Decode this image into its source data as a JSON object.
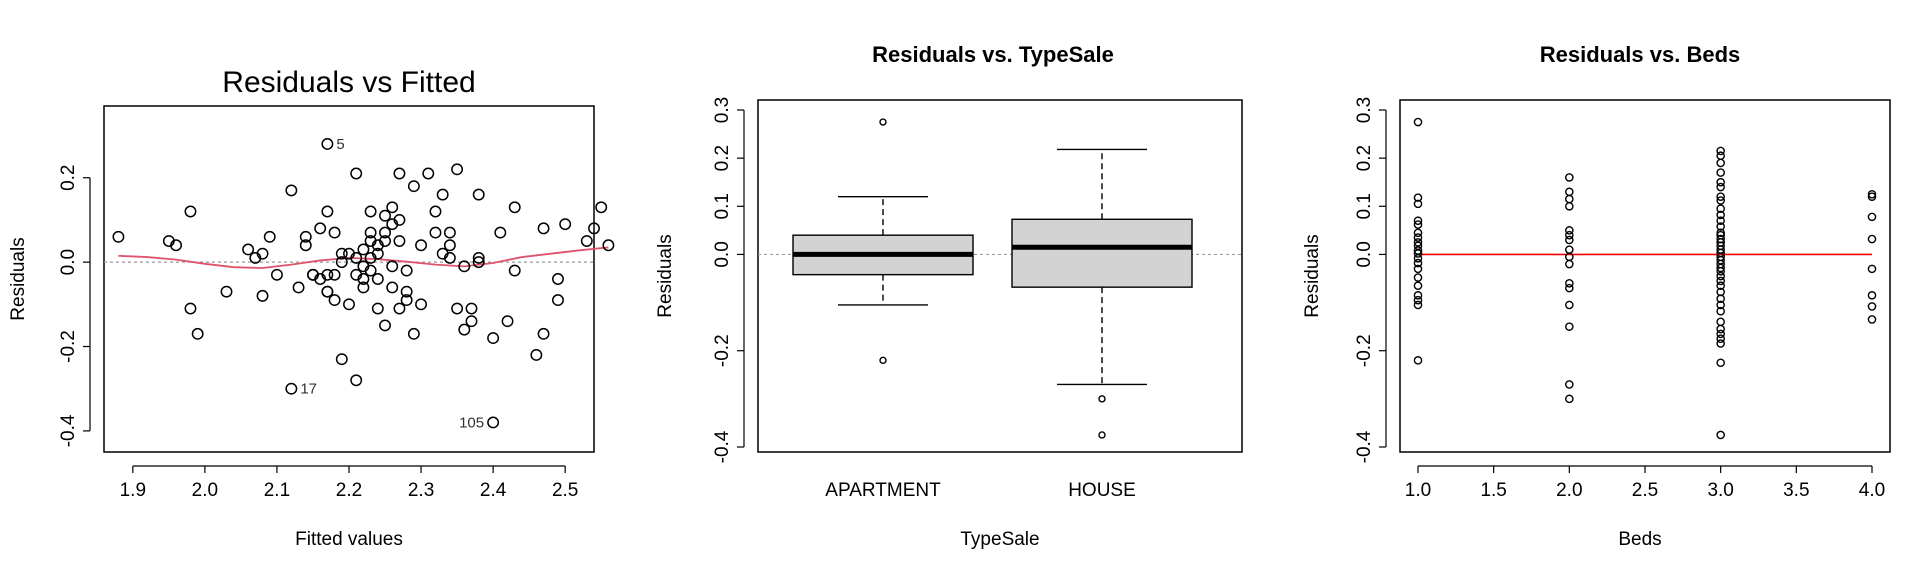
{
  "chart_data": [
    {
      "type": "scatter",
      "title": "Residuals vs Fitted",
      "xlabel": "Fitted values",
      "ylabel": "Residuals",
      "xlim": [
        1.86,
        2.54
      ],
      "ylim": [
        -0.45,
        0.37
      ],
      "xticks": [
        "1.9",
        "2.0",
        "2.1",
        "2.2",
        "2.3",
        "2.4",
        "2.5"
      ],
      "yticks": [
        "-0.4",
        "-0.2",
        "0.0",
        "0.2"
      ],
      "reference_line": 0,
      "colors": {
        "points": "#000000",
        "smooth": "#df536b",
        "reference": "#999999"
      },
      "points": [
        [
          1.88,
          0.06
        ],
        [
          1.95,
          0.05
        ],
        [
          1.96,
          0.04
        ],
        [
          1.98,
          0.12
        ],
        [
          1.98,
          -0.11
        ],
        [
          1.99,
          -0.17
        ],
        [
          2.03,
          -0.07
        ],
        [
          2.06,
          0.03
        ],
        [
          2.07,
          0.01
        ],
        [
          2.08,
          -0.08
        ],
        [
          2.08,
          0.02
        ],
        [
          2.09,
          0.06
        ],
        [
          2.1,
          -0.03
        ],
        [
          2.12,
          0.17
        ],
        [
          2.12,
          -0.3
        ],
        [
          2.13,
          -0.06
        ],
        [
          2.14,
          0.04
        ],
        [
          2.14,
          0.06
        ],
        [
          2.15,
          -0.03
        ],
        [
          2.15,
          -0.03
        ],
        [
          2.16,
          0.08
        ],
        [
          2.16,
          -0.04
        ],
        [
          2.17,
          -0.03
        ],
        [
          2.17,
          -0.07
        ],
        [
          2.17,
          -0.07
        ],
        [
          2.17,
          0.12
        ],
        [
          2.17,
          0.28
        ],
        [
          2.18,
          -0.09
        ],
        [
          2.18,
          0.07
        ],
        [
          2.18,
          -0.03
        ],
        [
          2.19,
          -0.23
        ],
        [
          2.19,
          0.0
        ],
        [
          2.19,
          0.02
        ],
        [
          2.2,
          0.02
        ],
        [
          2.2,
          -0.1
        ],
        [
          2.21,
          -0.28
        ],
        [
          2.21,
          0.21
        ],
        [
          2.21,
          0.01
        ],
        [
          2.21,
          -0.03
        ],
        [
          2.22,
          -0.06
        ],
        [
          2.22,
          0.03
        ],
        [
          2.22,
          -0.01
        ],
        [
          2.22,
          -0.04
        ],
        [
          2.23,
          0.05
        ],
        [
          2.23,
          0.12
        ],
        [
          2.23,
          0.07
        ],
        [
          2.23,
          -0.02
        ],
        [
          2.23,
          0.01
        ],
        [
          2.24,
          0.04
        ],
        [
          2.24,
          -0.04
        ],
        [
          2.24,
          -0.11
        ],
        [
          2.24,
          0.02
        ],
        [
          2.25,
          0.05
        ],
        [
          2.25,
          0.07
        ],
        [
          2.25,
          0.11
        ],
        [
          2.25,
          -0.15
        ],
        [
          2.26,
          -0.01
        ],
        [
          2.26,
          0.13
        ],
        [
          2.26,
          0.09
        ],
        [
          2.26,
          -0.06
        ],
        [
          2.27,
          0.1
        ],
        [
          2.27,
          -0.11
        ],
        [
          2.27,
          0.05
        ],
        [
          2.27,
          0.21
        ],
        [
          2.28,
          -0.09
        ],
        [
          2.28,
          -0.02
        ],
        [
          2.28,
          -0.07
        ],
        [
          2.29,
          0.18
        ],
        [
          2.29,
          -0.17
        ],
        [
          2.3,
          0.04
        ],
        [
          2.3,
          -0.1
        ],
        [
          2.31,
          0.21
        ],
        [
          2.32,
          0.07
        ],
        [
          2.32,
          0.12
        ],
        [
          2.33,
          0.16
        ],
        [
          2.33,
          0.02
        ],
        [
          2.34,
          0.04
        ],
        [
          2.34,
          0.07
        ],
        [
          2.34,
          0.01
        ],
        [
          2.35,
          0.22
        ],
        [
          2.35,
          -0.11
        ],
        [
          2.36,
          -0.16
        ],
        [
          2.36,
          -0.01
        ],
        [
          2.37,
          -0.11
        ],
        [
          2.37,
          -0.14
        ],
        [
          2.38,
          0.16
        ],
        [
          2.38,
          0.0
        ],
        [
          2.38,
          0.01
        ],
        [
          2.4,
          -0.18
        ],
        [
          2.4,
          -0.38
        ],
        [
          2.41,
          0.07
        ],
        [
          2.42,
          -0.14
        ],
        [
          2.43,
          -0.02
        ],
        [
          2.43,
          0.13
        ],
        [
          2.46,
          -0.22
        ],
        [
          2.47,
          -0.17
        ],
        [
          2.47,
          0.08
        ],
        [
          2.49,
          -0.09
        ],
        [
          2.49,
          -0.04
        ],
        [
          2.5,
          0.09
        ],
        [
          2.53,
          0.05
        ],
        [
          2.54,
          0.08
        ],
        [
          2.55,
          0.13
        ],
        [
          2.56,
          0.04
        ]
      ],
      "smooth": [
        [
          1.88,
          0.015
        ],
        [
          1.92,
          0.012
        ],
        [
          1.96,
          0.006
        ],
        [
          2.0,
          -0.004
        ],
        [
          2.04,
          -0.012
        ],
        [
          2.08,
          -0.014
        ],
        [
          2.12,
          -0.006
        ],
        [
          2.16,
          0.004
        ],
        [
          2.2,
          0.01
        ],
        [
          2.24,
          0.007
        ],
        [
          2.28,
          0.001
        ],
        [
          2.32,
          -0.006
        ],
        [
          2.36,
          -0.01
        ],
        [
          2.4,
          -0.002
        ],
        [
          2.44,
          0.012
        ],
        [
          2.48,
          0.02
        ],
        [
          2.52,
          0.028
        ],
        [
          2.56,
          0.035
        ]
      ],
      "point_labels": [
        {
          "text": "5",
          "x": 2.17,
          "y": 0.28
        },
        {
          "text": "17",
          "x": 2.12,
          "y": -0.3
        },
        {
          "text": "105",
          "x": 2.4,
          "y": -0.38
        }
      ]
    },
    {
      "type": "box",
      "title": "Residuals vs. TypeSale",
      "xlabel": "TypeSale",
      "ylabel": "Residuals",
      "ylim": [
        -0.4,
        0.3
      ],
      "yticks": [
        "-0.4",
        "-0.2",
        "0.0",
        "0.1",
        "0.2",
        "0.3"
      ],
      "reference_line": 0,
      "colors": {
        "box_fill": "#d3d3d3",
        "reference": "#999999"
      },
      "categories": [
        "APARTMENT",
        "HOUSE"
      ],
      "boxes": [
        {
          "whisker_low": -0.105,
          "q1": -0.042,
          "median": 0.0,
          "q3": 0.04,
          "whisker_high": 0.12,
          "outliers": [
            0.275,
            -0.22
          ]
        },
        {
          "whisker_low": -0.27,
          "q1": -0.068,
          "median": 0.015,
          "q3": 0.073,
          "whisker_high": 0.218,
          "outliers": [
            -0.3,
            -0.375
          ]
        }
      ]
    },
    {
      "type": "scatter",
      "title": "Residuals vs. Beds",
      "xlabel": "Beds",
      "ylabel": "Residuals",
      "xlim": [
        0.92,
        4.08
      ],
      "ylim": [
        -0.4,
        0.3
      ],
      "xticks": [
        "1.0",
        "1.5",
        "2.0",
        "2.5",
        "3.0",
        "3.5",
        "4.0"
      ],
      "yticks": [
        "-0.4",
        "-0.2",
        "0.0",
        "0.1",
        "0.2",
        "0.3"
      ],
      "reference_line": 0,
      "colors": {
        "points": "#000000",
        "reference": "#ff0000"
      },
      "points": [
        [
          1,
          0.275
        ],
        [
          1,
          0.118
        ],
        [
          1,
          0.105
        ],
        [
          1,
          0.07
        ],
        [
          1,
          0.062
        ],
        [
          1,
          0.045
        ],
        [
          1,
          0.035
        ],
        [
          1,
          0.025
        ],
        [
          1,
          0.018
        ],
        [
          1,
          0.008
        ],
        [
          1,
          0.002
        ],
        [
          1,
          -0.008
        ],
        [
          1,
          -0.018
        ],
        [
          1,
          -0.03
        ],
        [
          1,
          -0.048
        ],
        [
          1,
          -0.065
        ],
        [
          1,
          -0.085
        ],
        [
          1,
          -0.095
        ],
        [
          1,
          -0.105
        ],
        [
          1,
          -0.22
        ],
        [
          2,
          0.16
        ],
        [
          2,
          0.13
        ],
        [
          2,
          0.115
        ],
        [
          2,
          0.1
        ],
        [
          2,
          0.05
        ],
        [
          2,
          0.04
        ],
        [
          2,
          0.03
        ],
        [
          2,
          0.01
        ],
        [
          2,
          -0.005
        ],
        [
          2,
          -0.02
        ],
        [
          2,
          -0.06
        ],
        [
          2,
          -0.07
        ],
        [
          2,
          -0.105
        ],
        [
          2,
          -0.15
        ],
        [
          2,
          -0.27
        ],
        [
          2,
          -0.3
        ],
        [
          3,
          0.215
        ],
        [
          3,
          0.205
        ],
        [
          3,
          0.19
        ],
        [
          3,
          0.17
        ],
        [
          3,
          0.15
        ],
        [
          3,
          0.14
        ],
        [
          3,
          0.12
        ],
        [
          3,
          0.112
        ],
        [
          3,
          0.095
        ],
        [
          3,
          0.082
        ],
        [
          3,
          0.07
        ],
        [
          3,
          0.058
        ],
        [
          3,
          0.045
        ],
        [
          3,
          0.04
        ],
        [
          3,
          0.032
        ],
        [
          3,
          0.025
        ],
        [
          3,
          0.018
        ],
        [
          3,
          0.01
        ],
        [
          3,
          0.003
        ],
        [
          3,
          -0.005
        ],
        [
          3,
          -0.012
        ],
        [
          3,
          -0.02
        ],
        [
          3,
          -0.028
        ],
        [
          3,
          -0.035
        ],
        [
          3,
          -0.045
        ],
        [
          3,
          -0.055
        ],
        [
          3,
          -0.065
        ],
        [
          3,
          -0.078
        ],
        [
          3,
          -0.092
        ],
        [
          3,
          -0.105
        ],
        [
          3,
          -0.118
        ],
        [
          3,
          -0.14
        ],
        [
          3,
          -0.155
        ],
        [
          3,
          -0.165
        ],
        [
          3,
          -0.175
        ],
        [
          3,
          -0.185
        ],
        [
          3,
          -0.225
        ],
        [
          3,
          -0.375
        ],
        [
          4,
          0.125
        ],
        [
          4,
          0.12
        ],
        [
          4,
          0.078
        ],
        [
          4,
          0.032
        ],
        [
          4,
          -0.03
        ],
        [
          4,
          -0.085
        ],
        [
          4,
          -0.108
        ],
        [
          4,
          -0.135
        ]
      ]
    }
  ]
}
